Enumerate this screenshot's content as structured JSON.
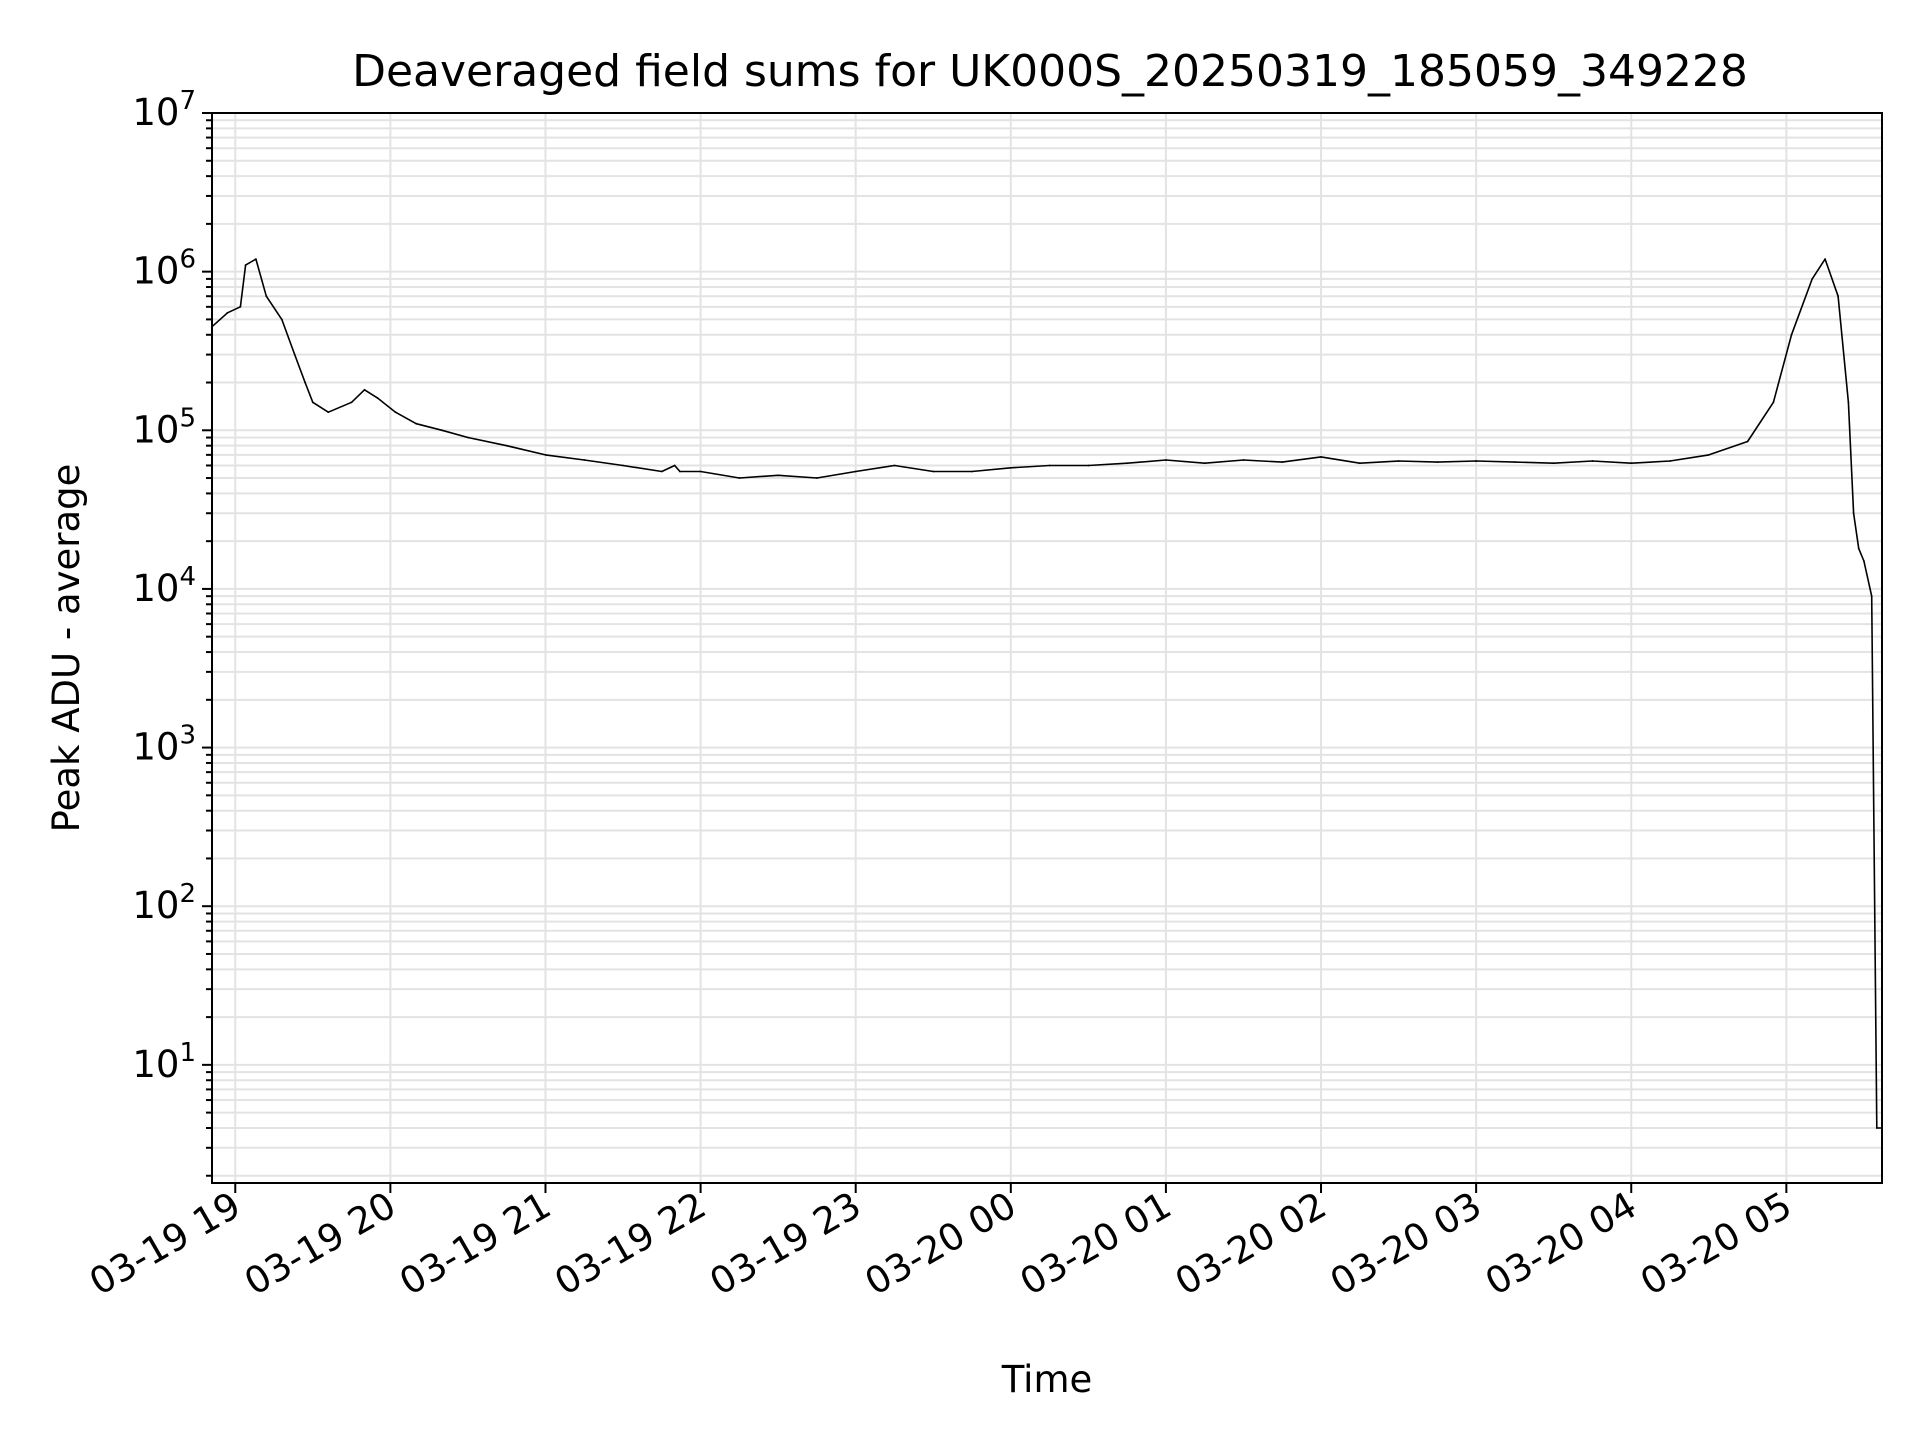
{
  "chart_data": {
    "type": "line",
    "title": "Deaveraged field sums for UK000S_20250319_185059_349228",
    "xlabel": "Time",
    "ylabel": "Peak ADU - average",
    "yscale": "log",
    "ylim": [
      1.8,
      10000000
    ],
    "xlim": [
      "2025-03-19 18:51",
      "2025-03-20 05:37"
    ],
    "grid": true,
    "line_color": "#000000",
    "x_ticks": [
      "03-19 19",
      "03-19 20",
      "03-19 21",
      "03-19 22",
      "03-19 23",
      "03-20 00",
      "03-20 01",
      "03-20 02",
      "03-20 03",
      "03-20 04",
      "03-20 05"
    ],
    "y_ticks": [
      {
        "value": 10,
        "base": "10",
        "exp": "1"
      },
      {
        "value": 100,
        "base": "10",
        "exp": "2"
      },
      {
        "value": 1000,
        "base": "10",
        "exp": "3"
      },
      {
        "value": 10000,
        "base": "10",
        "exp": "4"
      },
      {
        "value": 100000,
        "base": "10",
        "exp": "5"
      },
      {
        "value": 1000000,
        "base": "10",
        "exp": "6"
      },
      {
        "value": 10000000,
        "base": "10",
        "exp": "7"
      }
    ],
    "series": [
      {
        "x": [
          "2025-03-19 18:51",
          "2025-03-19 18:57",
          "2025-03-19 19:02",
          "2025-03-19 19:04",
          "2025-03-19 19:08",
          "2025-03-19 19:12",
          "2025-03-19 19:18",
          "2025-03-19 19:23",
          "2025-03-19 19:27",
          "2025-03-19 19:30",
          "2025-03-19 19:36",
          "2025-03-19 19:45",
          "2025-03-19 19:50",
          "2025-03-19 19:55",
          "2025-03-19 20:02",
          "2025-03-19 20:10",
          "2025-03-19 20:20",
          "2025-03-19 20:30",
          "2025-03-19 20:45",
          "2025-03-19 21:00",
          "2025-03-19 21:15",
          "2025-03-19 21:30",
          "2025-03-19 21:45",
          "2025-03-19 21:50",
          "2025-03-19 21:52",
          "2025-03-19 22:00",
          "2025-03-19 22:15",
          "2025-03-19 22:30",
          "2025-03-19 22:45",
          "2025-03-19 23:00",
          "2025-03-19 23:15",
          "2025-03-19 23:30",
          "2025-03-19 23:45",
          "2025-03-20 00:00",
          "2025-03-20 00:15",
          "2025-03-20 00:30",
          "2025-03-20 00:45",
          "2025-03-20 01:00",
          "2025-03-20 01:15",
          "2025-03-20 01:30",
          "2025-03-20 01:45",
          "2025-03-20 02:00",
          "2025-03-20 02:15",
          "2025-03-20 02:30",
          "2025-03-20 02:45",
          "2025-03-20 03:00",
          "2025-03-20 03:15",
          "2025-03-20 03:30",
          "2025-03-20 03:45",
          "2025-03-20 04:00",
          "2025-03-20 04:15",
          "2025-03-20 04:30",
          "2025-03-20 04:45",
          "2025-03-20 04:55",
          "2025-03-20 05:02",
          "2025-03-20 05:10",
          "2025-03-20 05:15",
          "2025-03-20 05:20",
          "2025-03-20 05:24",
          "2025-03-20 05:26",
          "2025-03-20 05:28",
          "2025-03-20 05:30",
          "2025-03-20 05:33",
          "2025-03-20 05:35",
          "2025-03-20 05:37"
        ],
        "y": [
          450000,
          550000,
          600000,
          1100000,
          1200000,
          700000,
          500000,
          300000,
          200000,
          150000,
          130000,
          150000,
          180000,
          160000,
          130000,
          110000,
          100000,
          90000,
          80000,
          70000,
          65000,
          60000,
          55000,
          60000,
          55000,
          55000,
          50000,
          52000,
          50000,
          55000,
          60000,
          55000,
          55000,
          58000,
          60000,
          60000,
          62000,
          65000,
          62000,
          65000,
          63000,
          68000,
          62000,
          64000,
          63000,
          64000,
          63000,
          62000,
          64000,
          62000,
          64000,
          70000,
          85000,
          150000,
          400000,
          900000,
          1200000,
          700000,
          150000,
          30000,
          18000,
          15000,
          9000,
          4,
          4
        ]
      }
    ]
  }
}
